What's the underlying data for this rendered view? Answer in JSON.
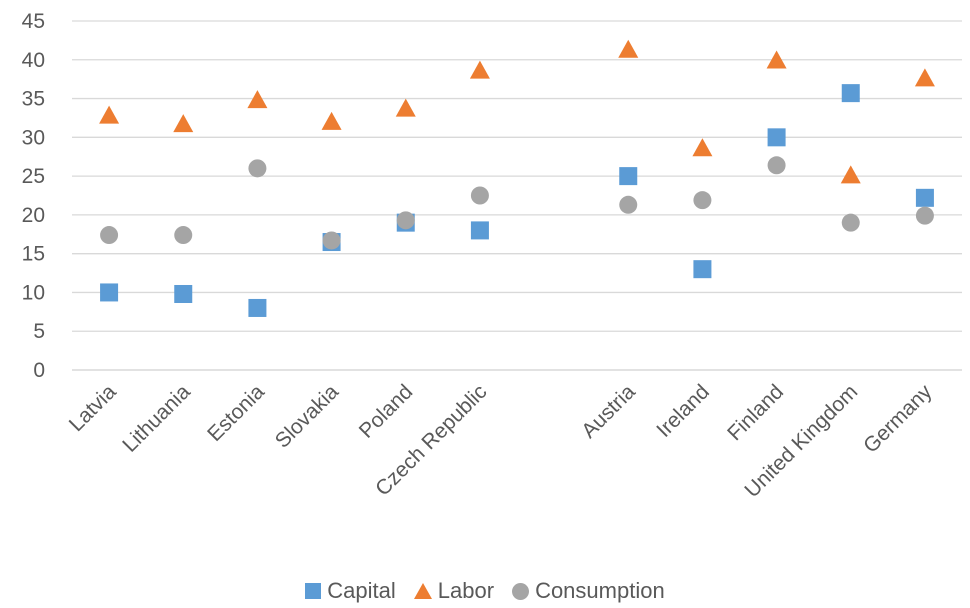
{
  "chart_data": {
    "type": "scatter",
    "categories": [
      "Latvia",
      "Lithuania",
      "Estonia",
      "Slovakia",
      "Poland",
      "Czech Republic",
      "",
      "Austria",
      "Ireland",
      "Finland",
      "United Kingdom",
      "Germany"
    ],
    "series": [
      {
        "name": "Capital",
        "marker": "square",
        "color": "#5B9BD5",
        "values": [
          10,
          9.8,
          8,
          16.5,
          19,
          18,
          null,
          25,
          13,
          30,
          35.7,
          22.2
        ]
      },
      {
        "name": "Labor",
        "marker": "triangle",
        "color": "#ED7D31",
        "values": [
          32.8,
          31.7,
          34.8,
          32,
          33.7,
          38.6,
          null,
          41.3,
          28.6,
          39.9,
          25.1,
          37.6
        ]
      },
      {
        "name": "Consumption",
        "marker": "circle",
        "color": "#A5A5A5",
        "values": [
          17.4,
          17.4,
          26,
          16.7,
          19.3,
          22.5,
          null,
          21.3,
          21.9,
          26.4,
          19,
          19.9
        ]
      }
    ],
    "ylim": [
      0,
      45
    ],
    "yticks": [
      0,
      5,
      10,
      15,
      20,
      25,
      30,
      35,
      40,
      45
    ],
    "grid": true,
    "legend_position": "bottom",
    "xlabel": "",
    "ylabel": "",
    "title": ""
  }
}
